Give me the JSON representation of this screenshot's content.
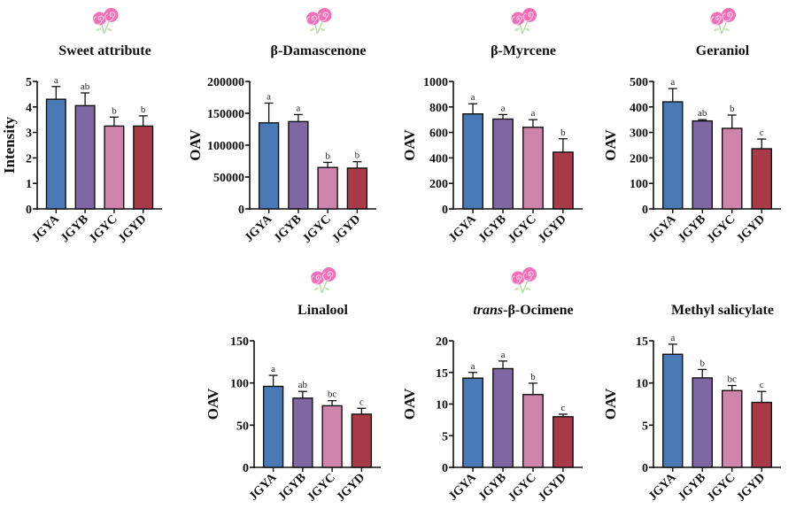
{
  "figure": {
    "categories": [
      "JGYA",
      "JGYB",
      "JGYC",
      "JGYD"
    ],
    "colors": [
      "#4a7ab5",
      "#7e67a3",
      "#cf84ab",
      "#a83a4a"
    ],
    "icon": "lollipop-icon"
  },
  "chart_data": [
    {
      "type": "bar",
      "title": "Sweet attribute",
      "title_italic_prefix": "",
      "xlabel": "",
      "ylabel": "Intensity",
      "ylim": [
        0,
        5
      ],
      "yticks": [
        0,
        1,
        2,
        3,
        4,
        5
      ],
      "categories": [
        "JGYA",
        "JGYB",
        "JGYC",
        "JGYD"
      ],
      "values": [
        4.3,
        4.05,
        3.25,
        3.25
      ],
      "error_upper": [
        4.8,
        4.55,
        3.6,
        3.65
      ],
      "significance": [
        "a",
        "ab",
        "b",
        "b"
      ],
      "has_icon": true
    },
    {
      "type": "bar",
      "title": "β-Damascenone",
      "title_italic_prefix": "",
      "xlabel": "",
      "ylabel": "OAV",
      "ylim": [
        0,
        200000
      ],
      "yticks": [
        0,
        50000,
        100000,
        150000,
        200000
      ],
      "categories": [
        "JGYA",
        "JGYB",
        "JGYC",
        "JGYD"
      ],
      "values": [
        135000,
        137000,
        65000,
        64000
      ],
      "error_upper": [
        166000,
        148000,
        73000,
        74000
      ],
      "significance": [
        "a",
        "a",
        "b",
        "b"
      ],
      "has_icon": true
    },
    {
      "type": "bar",
      "title": "β-Myrcene",
      "title_italic_prefix": "",
      "xlabel": "",
      "ylabel": "OAV",
      "ylim": [
        0,
        1000
      ],
      "yticks": [
        0,
        200,
        400,
        600,
        800,
        1000
      ],
      "categories": [
        "JGYA",
        "JGYB",
        "JGYC",
        "JGYD"
      ],
      "values": [
        745,
        705,
        640,
        445
      ],
      "error_upper": [
        825,
        740,
        700,
        550
      ],
      "significance": [
        "a",
        "a",
        "a",
        "b"
      ],
      "has_icon": true
    },
    {
      "type": "bar",
      "title": "Geraniol",
      "title_italic_prefix": "",
      "xlabel": "",
      "ylabel": "OAV",
      "ylim": [
        0,
        500
      ],
      "yticks": [
        0,
        100,
        200,
        300,
        400,
        500
      ],
      "categories": [
        "JGYA",
        "JGYB",
        "JGYC",
        "JGYD"
      ],
      "values": [
        420,
        345,
        316,
        236
      ],
      "error_upper": [
        472,
        350,
        368,
        274
      ],
      "significance": [
        "a",
        "ab",
        "b",
        "c"
      ],
      "has_icon": true
    },
    {
      "type": "bar",
      "title": "Linalool",
      "title_italic_prefix": "",
      "xlabel": "",
      "ylabel": "OAV",
      "ylim": [
        0,
        150
      ],
      "yticks": [
        0,
        50,
        100,
        150
      ],
      "categories": [
        "JGYA",
        "JGYB",
        "JGYC",
        "JGYD"
      ],
      "values": [
        96,
        82,
        73,
        63
      ],
      "error_upper": [
        109,
        90,
        79,
        70
      ],
      "significance": [
        "a",
        "ab",
        "bc",
        "c"
      ],
      "has_icon": true
    },
    {
      "type": "bar",
      "title": "-β-Ocimene",
      "title_italic_prefix": "trans",
      "xlabel": "",
      "ylabel": "OAV",
      "ylim": [
        0,
        20
      ],
      "yticks": [
        0,
        5,
        10,
        15,
        20
      ],
      "categories": [
        "JGYA",
        "JGYB",
        "JGYC",
        "JGYD"
      ],
      "values": [
        14.1,
        15.6,
        11.5,
        8.0
      ],
      "error_upper": [
        15.0,
        16.8,
        13.3,
        8.4
      ],
      "significance": [
        "a",
        "a",
        "b",
        "c"
      ],
      "has_icon": true
    },
    {
      "type": "bar",
      "title": "Methyl salicylate",
      "title_italic_prefix": "",
      "xlabel": "",
      "ylabel": "OAV",
      "ylim": [
        0,
        15
      ],
      "yticks": [
        0,
        5,
        10,
        15
      ],
      "categories": [
        "JGYA",
        "JGYB",
        "JGYC",
        "JGYD"
      ],
      "values": [
        13.4,
        10.6,
        9.1,
        7.7
      ],
      "error_upper": [
        14.6,
        11.6,
        9.7,
        9.0
      ],
      "significance": [
        "a",
        "b",
        "bc",
        "c"
      ],
      "has_icon": false
    }
  ]
}
